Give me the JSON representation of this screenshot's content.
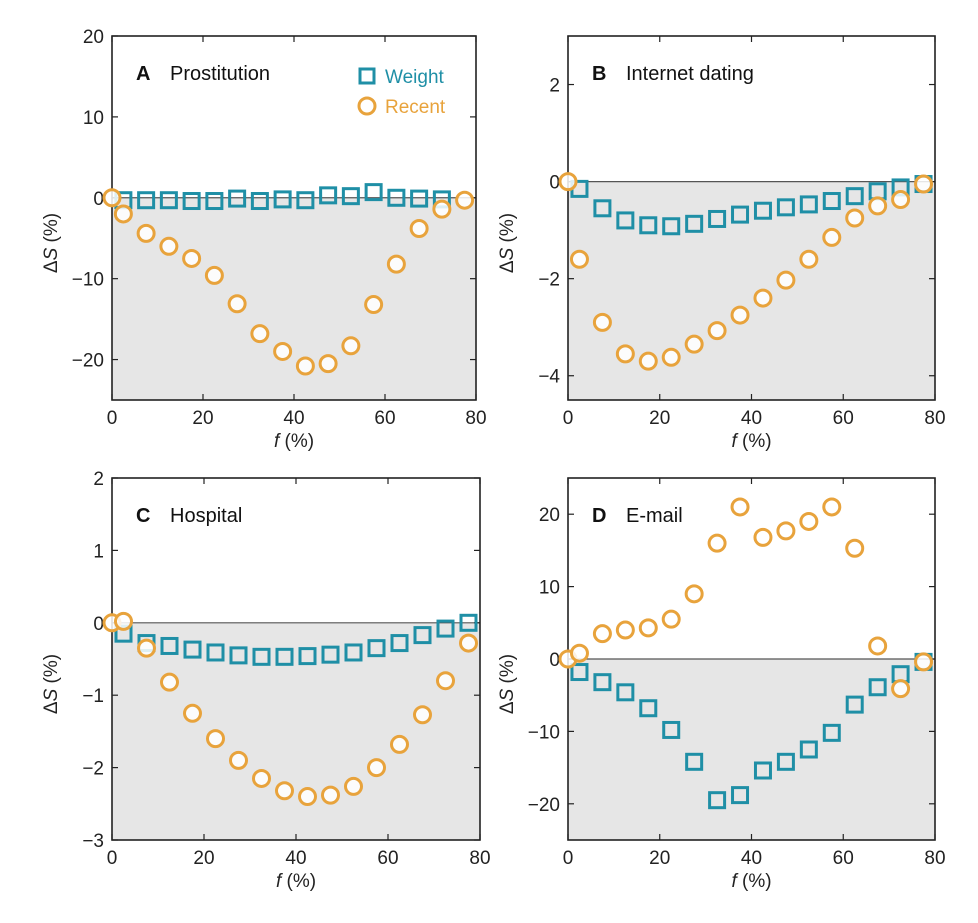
{
  "legend": {
    "weight_label": "Weight",
    "recent_label": "Recent"
  },
  "colors": {
    "weight": "#1f8fa6",
    "recent": "#e8a33c",
    "shade": "#e6e6e6",
    "axis": "#222222",
    "errorbar": "#c9c9c9"
  },
  "axis_labels": {
    "x": "f (%)",
    "y": "ΔS (%)"
  },
  "chart_data": [
    {
      "type": "scatter",
      "panel": "A",
      "title": "Prostitution",
      "xlabel": "f (%)",
      "ylabel": "ΔS (%)",
      "xlim": [
        0,
        80
      ],
      "ylim": [
        -25,
        20
      ],
      "xticks": [
        0,
        20,
        40,
        60,
        80
      ],
      "yticks": [
        -20,
        -10,
        0,
        10,
        20
      ],
      "legend": "top-right",
      "series": [
        {
          "name": "Weight",
          "marker": "square",
          "x": [
            2.5,
            7.5,
            12.5,
            17.5,
            22.5,
            27.5,
            32.5,
            37.5,
            42.5,
            47.5,
            52.5,
            57.5,
            62.5,
            67.5,
            72.5
          ],
          "y": [
            -0.3,
            -0.3,
            -0.3,
            -0.4,
            -0.4,
            -0.1,
            -0.4,
            -0.2,
            -0.3,
            0.3,
            0.2,
            0.7,
            0.0,
            -0.1,
            -0.2
          ]
        },
        {
          "name": "Recent",
          "marker": "circle",
          "x": [
            0,
            2.5,
            7.5,
            12.5,
            17.5,
            22.5,
            27.5,
            32.5,
            37.5,
            42.5,
            47.5,
            52.5,
            57.5,
            62.5,
            67.5,
            72.5,
            77.5
          ],
          "y": [
            0,
            -2.0,
            -4.4,
            -6.0,
            -7.5,
            -9.6,
            -13.1,
            -16.8,
            -19.0,
            -20.8,
            -20.5,
            -18.3,
            -13.2,
            -8.2,
            -3.8,
            -1.4,
            -0.3
          ]
        }
      ]
    },
    {
      "type": "scatter",
      "panel": "B",
      "title": "Internet dating",
      "xlabel": "f (%)",
      "ylabel": "ΔS (%)",
      "xlim": [
        0,
        80
      ],
      "ylim": [
        -4.5,
        3
      ],
      "xticks": [
        0,
        20,
        40,
        60,
        80
      ],
      "yticks": [
        -4,
        -2,
        0,
        2
      ],
      "series": [
        {
          "name": "Weight",
          "marker": "square",
          "x": [
            2.5,
            7.5,
            12.5,
            17.5,
            22.5,
            27.5,
            32.5,
            37.5,
            42.5,
            47.5,
            52.5,
            57.5,
            62.5,
            67.5,
            72.5,
            77.5
          ],
          "y": [
            -0.15,
            -0.55,
            -0.8,
            -0.9,
            -0.92,
            -0.87,
            -0.77,
            -0.68,
            -0.6,
            -0.53,
            -0.47,
            -0.4,
            -0.3,
            -0.2,
            -0.12,
            -0.05
          ]
        },
        {
          "name": "Recent",
          "marker": "circle",
          "x": [
            0,
            2.5,
            7.5,
            12.5,
            17.5,
            22.5,
            27.5,
            32.5,
            37.5,
            42.5,
            47.5,
            52.5,
            57.5,
            62.5,
            67.5,
            72.5,
            77.5
          ],
          "y": [
            0,
            -1.6,
            -2.9,
            -3.55,
            -3.7,
            -3.62,
            -3.35,
            -3.07,
            -2.75,
            -2.4,
            -2.03,
            -1.6,
            -1.15,
            -0.75,
            -0.5,
            -0.37,
            -0.05
          ]
        }
      ]
    },
    {
      "type": "scatter",
      "panel": "C",
      "title": "Hospital",
      "xlabel": "f (%)",
      "ylabel": "ΔS (%)",
      "xlim": [
        0,
        80
      ],
      "ylim": [
        -3,
        2
      ],
      "xticks": [
        0,
        20,
        40,
        60,
        80
      ],
      "yticks": [
        -3,
        -2,
        -1,
        0,
        1,
        2
      ],
      "series": [
        {
          "name": "Weight",
          "marker": "square",
          "x": [
            2.5,
            7.5,
            12.5,
            17.5,
            22.5,
            27.5,
            32.5,
            37.5,
            42.5,
            47.5,
            52.5,
            57.5,
            62.5,
            67.5,
            72.5,
            77.5
          ],
          "y": [
            -0.15,
            -0.28,
            -0.32,
            -0.37,
            -0.41,
            -0.45,
            -0.47,
            -0.47,
            -0.46,
            -0.44,
            -0.41,
            -0.35,
            -0.28,
            -0.17,
            -0.08,
            0.0
          ]
        },
        {
          "name": "Recent",
          "marker": "circle",
          "x": [
            0,
            2.5,
            7.5,
            12.5,
            17.5,
            22.5,
            27.5,
            32.5,
            37.5,
            42.5,
            47.5,
            52.5,
            57.5,
            62.5,
            67.5,
            72.5,
            77.5
          ],
          "y": [
            0,
            0.02,
            -0.35,
            -0.82,
            -1.25,
            -1.6,
            -1.9,
            -2.15,
            -2.32,
            -2.4,
            -2.38,
            -2.26,
            -2.0,
            -1.68,
            -1.27,
            -0.8,
            -0.28
          ]
        }
      ]
    },
    {
      "type": "scatter",
      "panel": "D",
      "title": "E-mail",
      "xlabel": "f (%)",
      "ylabel": "ΔS (%)",
      "xlim": [
        0,
        80
      ],
      "ylim": [
        -25,
        25
      ],
      "xticks": [
        0,
        20,
        40,
        60,
        80
      ],
      "yticks": [
        -20,
        -10,
        0,
        10,
        20
      ],
      "series": [
        {
          "name": "Weight",
          "marker": "square",
          "x": [
            2.5,
            7.5,
            12.5,
            17.5,
            22.5,
            27.5,
            32.5,
            37.5,
            42.5,
            47.5,
            52.5,
            57.5,
            62.5,
            67.5,
            72.5,
            77.5
          ],
          "y": [
            -1.8,
            -3.2,
            -4.6,
            -6.8,
            -9.8,
            -14.2,
            -19.5,
            -18.8,
            -15.4,
            -14.2,
            -12.5,
            -10.2,
            -6.3,
            -3.9,
            -2.1,
            -0.4
          ]
        },
        {
          "name": "Recent",
          "marker": "circle",
          "x": [
            0,
            2.5,
            7.5,
            12.5,
            17.5,
            22.5,
            27.5,
            32.5,
            37.5,
            42.5,
            47.5,
            52.5,
            57.5,
            62.5,
            67.5,
            72.5,
            77.5
          ],
          "y": [
            0,
            0.8,
            3.5,
            4.0,
            4.3,
            5.5,
            9.0,
            16.0,
            21.0,
            16.8,
            17.7,
            19.0,
            21.0,
            15.3,
            1.8,
            -4.1,
            -0.4
          ]
        }
      ]
    }
  ]
}
